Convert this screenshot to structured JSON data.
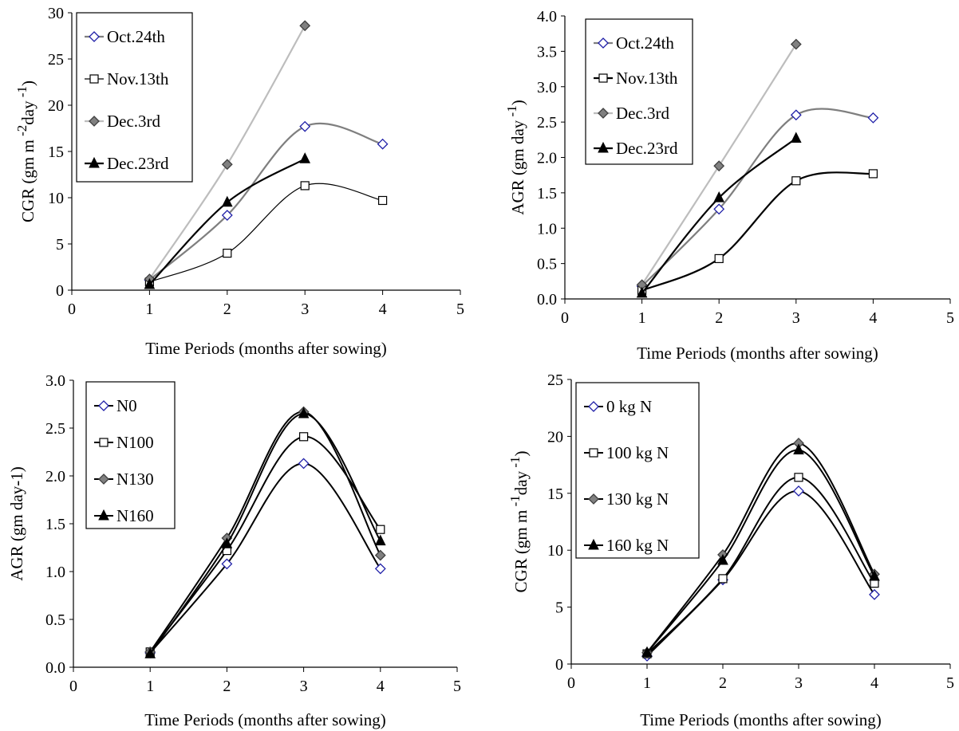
{
  "chart_data": [
    {
      "type": "line",
      "ylabel": "CGR (gm m",
      "ylabel_sup1": "-2",
      "ylabel_mid": "day",
      "ylabel_sup2": "-1",
      "ylabel_end": ")",
      "xlabel": "Time Periods (months after sowing)",
      "xlim": [
        0,
        5
      ],
      "ylim": [
        0,
        30
      ],
      "xticks": [
        "0",
        "1",
        "2",
        "3",
        "4",
        "5"
      ],
      "yticks": [
        "0",
        "5",
        "10",
        "15",
        "20",
        "25",
        "30"
      ],
      "legend_position": "top-left",
      "series": [
        {
          "name": "Oct.24th",
          "marker": "diamond-open",
          "color": "#7f7f7f",
          "width": 2.2,
          "x": [
            1,
            2,
            3,
            4
          ],
          "y": [
            1.1,
            8.1,
            17.7,
            15.8
          ]
        },
        {
          "name": "Nov.13th",
          "marker": "square-open",
          "color": "#000000",
          "width": 1.2,
          "x": [
            1,
            2,
            3,
            4
          ],
          "y": [
            0.9,
            4.0,
            11.3,
            9.7
          ]
        },
        {
          "name": "Dec.3rd",
          "marker": "diamond-filled",
          "color": "#bdbdbd",
          "width": 2.2,
          "x": [
            1,
            2,
            3
          ],
          "y": [
            1.2,
            13.6,
            28.6
          ]
        },
        {
          "name": "Dec.23rd",
          "marker": "triangle-filled",
          "color": "#000000",
          "width": 2.2,
          "x": [
            1,
            2,
            3
          ],
          "y": [
            0.6,
            9.5,
            14.2
          ]
        }
      ]
    },
    {
      "type": "line",
      "ylabel": "AGR (gm day",
      "ylabel_sup1": "-1",
      "ylabel_mid": "",
      "ylabel_sup2": "",
      "ylabel_end": ")",
      "xlabel": "Time Periods (months after sowing)",
      "xlim": [
        0,
        5
      ],
      "ylim": [
        0,
        4
      ],
      "xticks": [
        "0",
        "1",
        "2",
        "3",
        "4",
        "5"
      ],
      "yticks": [
        "0.0",
        "0.5",
        "1.0",
        "1.5",
        "2.0",
        "2.5",
        "3.0",
        "3.5",
        "4.0"
      ],
      "legend_position": "top-left",
      "series": [
        {
          "name": "Oct.24th",
          "marker": "diamond-open",
          "color": "#7f7f7f",
          "width": 2.2,
          "x": [
            1,
            2,
            3,
            4
          ],
          "y": [
            0.18,
            1.27,
            2.6,
            2.56
          ]
        },
        {
          "name": "Nov.13th",
          "marker": "square-open",
          "color": "#000000",
          "width": 2.2,
          "x": [
            1,
            2,
            3,
            4
          ],
          "y": [
            0.12,
            0.57,
            1.67,
            1.77
          ]
        },
        {
          "name": "Dec.3rd",
          "marker": "diamond-filled",
          "color": "#bdbdbd",
          "width": 2.2,
          "x": [
            1,
            2,
            3
          ],
          "y": [
            0.2,
            1.88,
            3.6
          ]
        },
        {
          "name": "Dec.23rd",
          "marker": "triangle-filled",
          "color": "#000000",
          "width": 2.2,
          "x": [
            1,
            2,
            3
          ],
          "y": [
            0.08,
            1.43,
            2.27
          ]
        }
      ]
    },
    {
      "type": "line",
      "ylabel": "AGR (gm day-1)",
      "ylabel_sup1": "",
      "ylabel_mid": "",
      "ylabel_sup2": "",
      "ylabel_end": "",
      "xlabel": "Time Periods (months after sowing)",
      "xlim": [
        0,
        5
      ],
      "ylim": [
        0,
        3
      ],
      "xticks": [
        "0",
        "1",
        "2",
        "3",
        "4",
        "5"
      ],
      "yticks": [
        "0.0",
        "0.5",
        "1.0",
        "1.5",
        "2.0",
        "2.5",
        "3.0"
      ],
      "legend_position": "top-left",
      "series": [
        {
          "name": "N0",
          "marker": "diamond-open",
          "color": "#000000",
          "width": 2,
          "x": [
            1,
            2,
            3,
            4
          ],
          "y": [
            0.15,
            1.08,
            2.13,
            1.03
          ]
        },
        {
          "name": "N100",
          "marker": "square-open",
          "color": "#000000",
          "width": 2,
          "x": [
            1,
            2,
            3,
            4
          ],
          "y": [
            0.16,
            1.22,
            2.41,
            1.44
          ]
        },
        {
          "name": "N130",
          "marker": "diamond-filled",
          "color": "#000000",
          "width": 2,
          "x": [
            1,
            2,
            3,
            4
          ],
          "y": [
            0.16,
            1.35,
            2.67,
            1.17
          ]
        },
        {
          "name": "N160",
          "marker": "triangle-filled",
          "color": "#000000",
          "width": 2,
          "x": [
            1,
            2,
            3,
            4
          ],
          "y": [
            0.14,
            1.29,
            2.65,
            1.32
          ]
        }
      ]
    },
    {
      "type": "line",
      "ylabel": "CGR (gm m",
      "ylabel_sup1": "-1",
      "ylabel_mid": "day",
      "ylabel_sup2": "-1",
      "ylabel_end": ")",
      "xlabel": "Time Periods (months after sowing)",
      "xlim": [
        0,
        5
      ],
      "ylim": [
        0,
        25
      ],
      "xticks": [
        "0",
        "1",
        "2",
        "3",
        "4",
        "5"
      ],
      "yticks": [
        "0",
        "5",
        "10",
        "15",
        "20",
        "25"
      ],
      "legend_position": "top-left",
      "series": [
        {
          "name": "0 kg N",
          "marker": "diamond-open",
          "color": "#000000",
          "width": 2,
          "x": [
            1,
            2,
            3,
            4
          ],
          "y": [
            0.7,
            7.4,
            15.2,
            6.1
          ]
        },
        {
          "name": "100 kg N",
          "marker": "square-open",
          "color": "#000000",
          "width": 2,
          "x": [
            1,
            2,
            3,
            4
          ],
          "y": [
            0.9,
            7.5,
            16.4,
            7.1
          ]
        },
        {
          "name": "130 kg N",
          "marker": "diamond-filled",
          "color": "#000000",
          "width": 2,
          "x": [
            1,
            2,
            3,
            4
          ],
          "y": [
            1.0,
            9.6,
            19.4,
            7.9
          ]
        },
        {
          "name": "160 kg N",
          "marker": "triangle-filled",
          "color": "#000000",
          "width": 2,
          "x": [
            1,
            2,
            3,
            4
          ],
          "y": [
            1.0,
            9.1,
            18.8,
            7.7
          ]
        }
      ]
    }
  ]
}
